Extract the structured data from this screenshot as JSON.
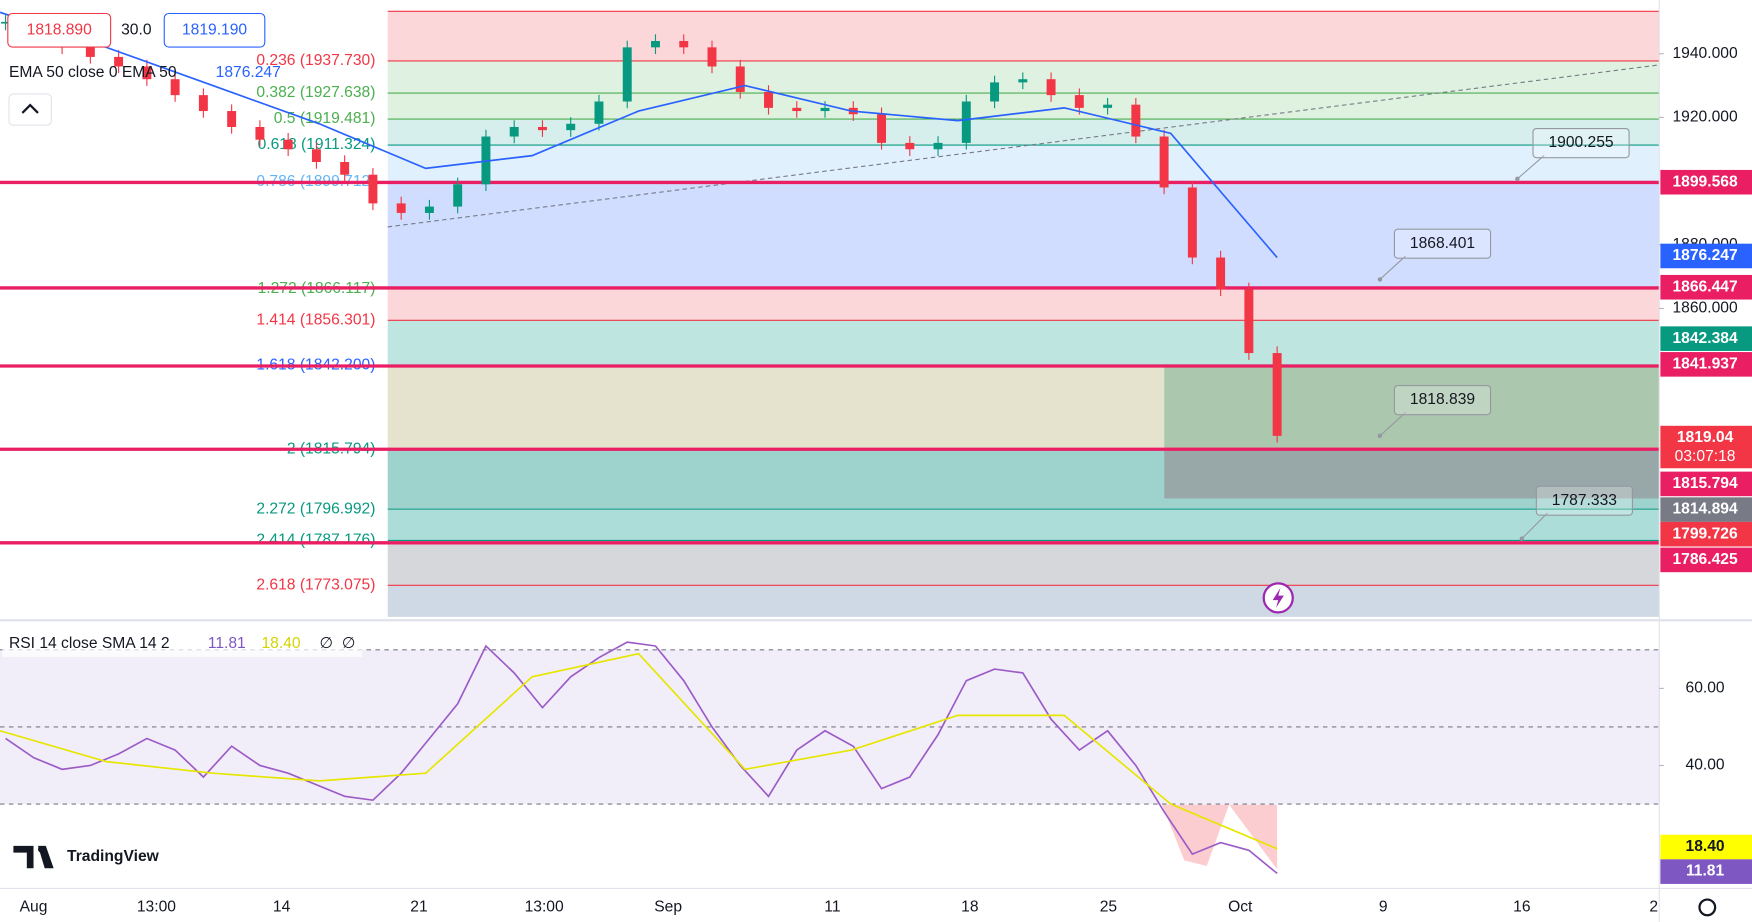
{
  "legend": {
    "bid": "1818.890",
    "spread": "30.0",
    "ask": "1819.190",
    "ema_label": "EMA 50 close 0 EMA 50",
    "ema_value": "1876.247"
  },
  "price_axis": {
    "ticks": [
      {
        "value": 1940,
        "label": "1940.000"
      },
      {
        "value": 1920,
        "label": "1920.000"
      },
      {
        "value": 1880,
        "label": "1880.000"
      },
      {
        "value": 1860,
        "label": "1860.000"
      }
    ]
  },
  "fib": [
    {
      "label": "0.236 (1937.730)",
      "value": 1937.73
    },
    {
      "label": "0.382 (1927.638)",
      "value": 1927.638
    },
    {
      "label": "0.5 (1919.481)",
      "value": 1919.481
    },
    {
      "label": "0.618 (1911.324)",
      "value": 1911.324
    },
    {
      "label": "0.786 (1899.712)",
      "value": 1899.712
    },
    {
      "label": "1.272 (1866.117)",
      "value": 1866.117
    },
    {
      "label": "1.414 (1856.301)",
      "value": 1856.301
    },
    {
      "label": "1.618 (1842.200)",
      "value": 1842.2
    },
    {
      "label": "2 (1815.794)",
      "value": 1815.794
    },
    {
      "label": "2.272 (1796.992)",
      "value": 1796.992
    },
    {
      "label": "2.414 (1787.176)",
      "value": 1787.176
    },
    {
      "label": "2.618 (1773.075)",
      "value": 1773.075
    }
  ],
  "levels": [
    1899.568,
    1866.447,
    1841.937,
    1815.794,
    1786.425
  ],
  "price_tags": [
    {
      "value": 1899.568,
      "color": "#e91e63"
    },
    {
      "value": 1876.247,
      "color": "#2962ff"
    },
    {
      "value": 1866.447,
      "color": "#e91e63"
    },
    {
      "value": 1842.384,
      "color": "#089981"
    },
    {
      "value": 1841.937,
      "color": "#e91e63"
    },
    {
      "value": 1819.04,
      "color": "#f23645",
      "countdown": "03:07:18"
    },
    {
      "value": 1815.794,
      "color": "#e91e63"
    },
    {
      "value": 1814.894,
      "color": "#787b86"
    },
    {
      "value": 1799.726,
      "color": "#f23645"
    },
    {
      "value": 1786.425,
      "color": "#e91e63"
    }
  ],
  "callouts": [
    {
      "label": "1900.255"
    },
    {
      "label": "1868.401"
    },
    {
      "label": "1818.839"
    },
    {
      "label": "1787.333"
    }
  ],
  "price": {
    "closes": [
      1950,
      1946,
      1942,
      1939,
      1936,
      1932,
      1927,
      1922,
      1917,
      1913,
      1910,
      1906,
      1902,
      1893,
      1890,
      1892,
      1899,
      1914,
      1917,
      1916,
      1918,
      1925,
      1942,
      1944,
      1942,
      1936,
      1928,
      1923,
      1922,
      1923,
      1921,
      1912,
      1910,
      1912,
      1925,
      1931,
      1932,
      1927,
      1923,
      1924,
      1914,
      1898,
      1876,
      1866,
      1846,
      1820
    ],
    "ema": [
      1953,
      1942,
      1930,
      1918,
      1904,
      1908,
      1922,
      1930,
      1922,
      1919,
      1923,
      1915,
      1876
    ]
  },
  "rsi": {
    "legend": "RSI 14 close SMA 14 2",
    "rsi_value": "11.81",
    "sma_value": "18.40",
    "na1": "∅",
    "na2": "∅",
    "ticks": [
      {
        "value": 60,
        "label": "60.00"
      },
      {
        "value": 40,
        "label": "40.00"
      }
    ],
    "values": [
      47,
      42,
      39,
      40,
      43,
      47,
      44,
      37,
      45,
      40,
      38,
      35,
      32,
      31,
      38,
      47,
      56,
      71,
      64,
      55,
      63,
      68,
      72,
      71,
      62,
      50,
      40,
      32,
      44,
      49,
      45,
      34,
      37,
      48,
      62,
      65,
      64,
      52,
      44,
      49,
      40,
      28,
      17,
      20,
      18,
      12
    ],
    "sma": [
      49,
      41,
      38,
      36,
      38,
      63,
      69,
      39,
      44,
      53,
      53,
      30,
      18.4
    ]
  },
  "time_axis": [
    "Aug",
    "13:00",
    "14",
    "21",
    "13:00",
    "Sep",
    "11",
    "18",
    "25",
    "Oct",
    "9",
    "16",
    "2"
  ],
  "logo": "TradingView"
}
